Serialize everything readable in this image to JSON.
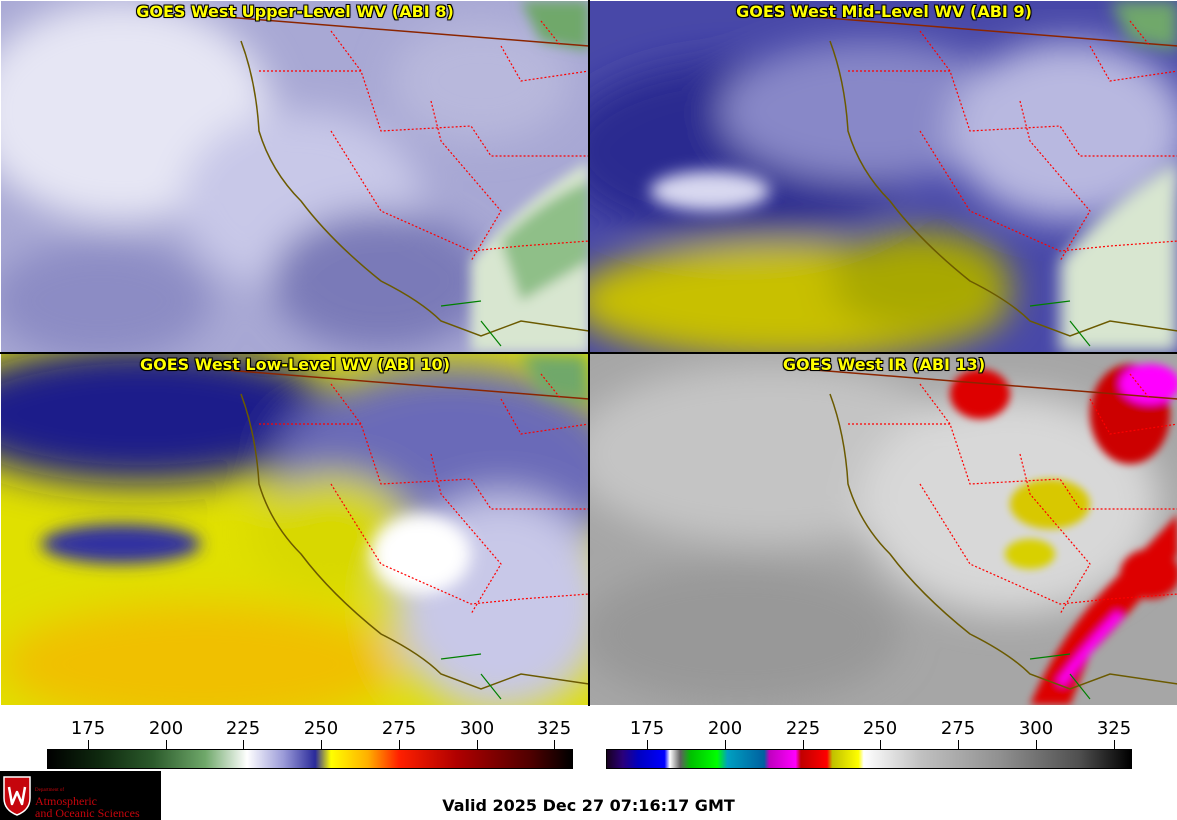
{
  "panels": [
    {
      "title": "GOES West Upper-Level WV (ABI 8)"
    },
    {
      "title": "GOES West Mid-Level WV (ABI 9)"
    },
    {
      "title": "GOES West Low-Level WV (ABI 10)"
    },
    {
      "title": "GOES West IR (ABI 13)"
    }
  ],
  "colorbars": {
    "water_vapor": {
      "ticks": [
        "175",
        "200",
        "225",
        "250",
        "275",
        "300",
        "325"
      ]
    },
    "infrared": {
      "ticks": [
        "175",
        "200",
        "225",
        "250",
        "275",
        "300",
        "325"
      ]
    }
  },
  "logo": {
    "dept_line": "Department of",
    "name_line1": "Atmospheric",
    "name_line2": "and Oceanic Sciences"
  },
  "valid_time": "Valid 2025 Dec 27 07:16:17 GMT",
  "colors": {
    "title_text": "#ffff00",
    "state_borders": "#ff0000",
    "coastline": "#6b5a00",
    "country_border": "#8b2500",
    "logo_red": "#c5050c"
  }
}
